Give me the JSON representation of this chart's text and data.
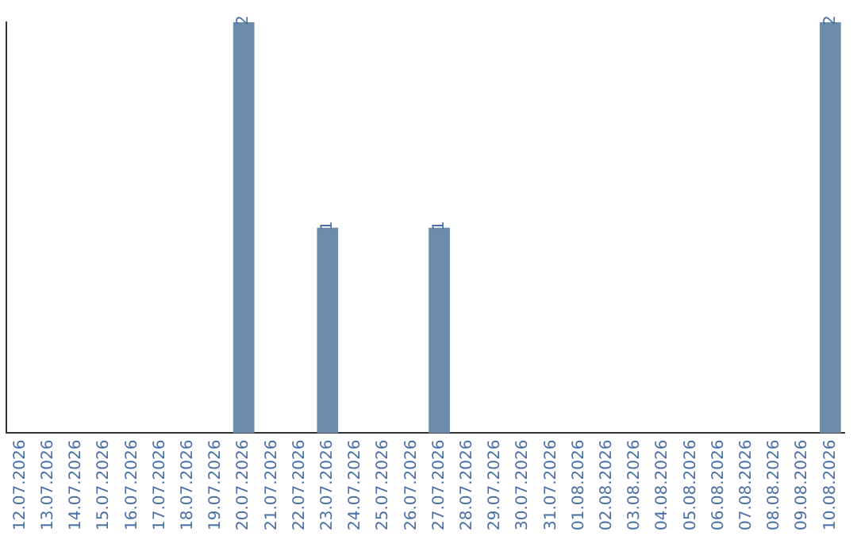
{
  "chart_data": {
    "type": "bar",
    "categories": [
      "12.07.2026",
      "13.07.2026",
      "14.07.2026",
      "15.07.2026",
      "16.07.2026",
      "17.07.2026",
      "18.07.2026",
      "19.07.2026",
      "20.07.2026",
      "21.07.2026",
      "22.07.2026",
      "23.07.2026",
      "24.07.2026",
      "25.07.2026",
      "26.07.2026",
      "27.07.2026",
      "28.07.2026",
      "29.07.2026",
      "30.07.2026",
      "31.07.2026",
      "01.08.2026",
      "02.08.2026",
      "03.08.2026",
      "04.08.2026",
      "05.08.2026",
      "06.08.2026",
      "07.08.2026",
      "08.08.2026",
      "09.08.2026",
      "10.08.2026"
    ],
    "values": [
      0,
      0,
      0,
      0,
      0,
      0,
      0,
      0,
      2,
      0,
      0,
      1,
      0,
      0,
      0,
      1,
      0,
      0,
      0,
      0,
      0,
      0,
      0,
      0,
      0,
      0,
      0,
      0,
      0,
      2
    ],
    "value_labels": [
      null,
      null,
      null,
      null,
      null,
      null,
      null,
      null,
      "2",
      null,
      null,
      "1",
      null,
      null,
      null,
      "1",
      null,
      null,
      null,
      null,
      null,
      null,
      null,
      null,
      null,
      null,
      null,
      null,
      null,
      "2"
    ],
    "color": "#6d8cab",
    "ylim": [
      0,
      2
    ],
    "tick_labels": "x",
    "grid": false,
    "legend": false
  }
}
